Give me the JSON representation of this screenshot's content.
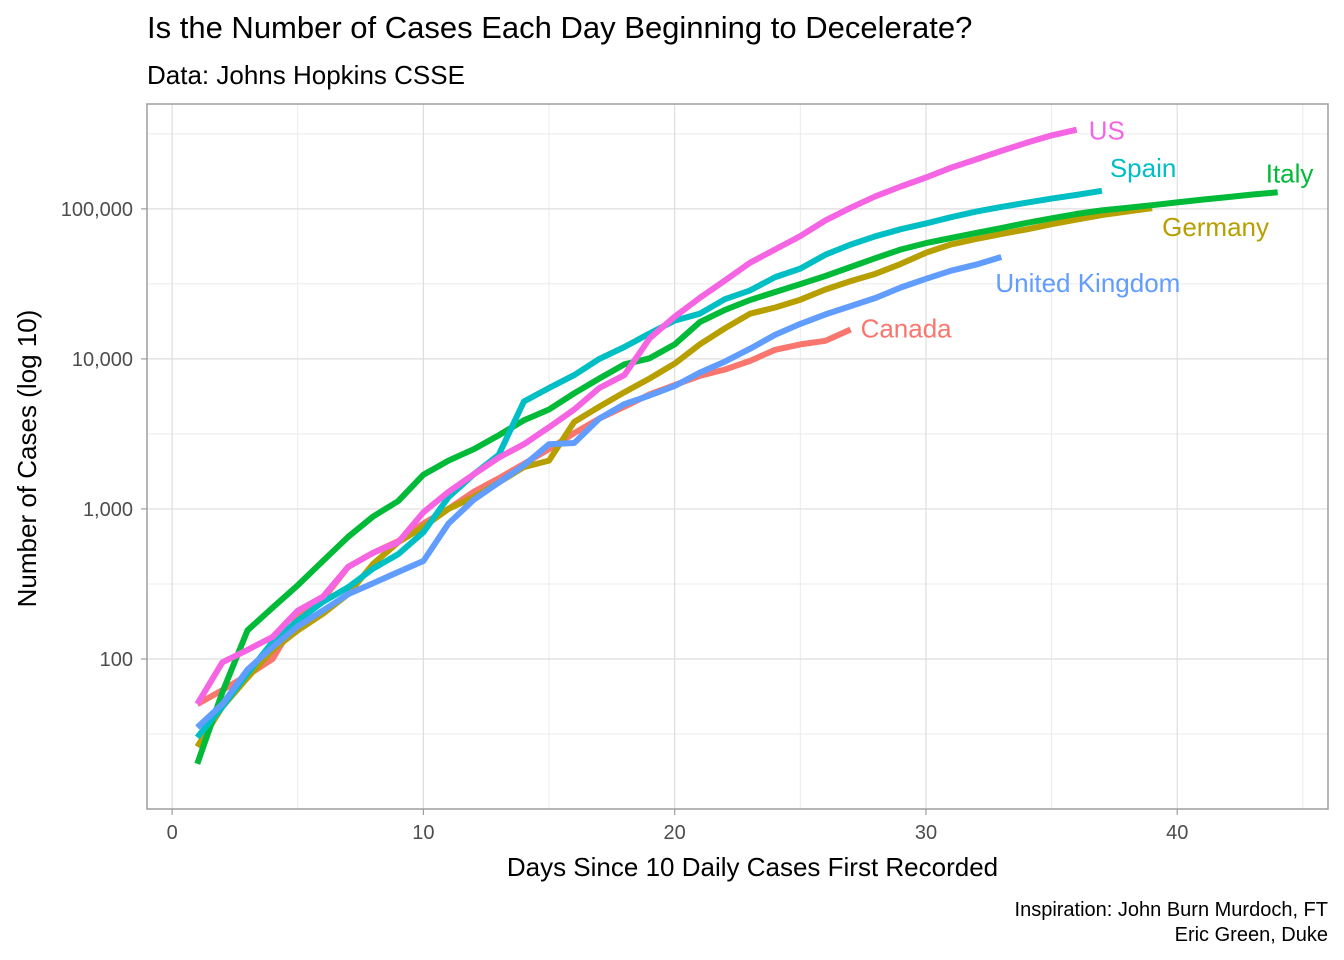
{
  "title": "Is the Number of Cases Each Day Beginning to Decelerate?",
  "subtitle": "Data: Johns Hopkins CSSE",
  "caption": [
    "Inspiration: John Burn Murdoch, FT",
    "Eric Green, Duke"
  ],
  "chart_data": {
    "type": "line",
    "xlabel": "Days Since 10 Daily Cases First Recorded",
    "ylabel": "Number of Cases (log 10)",
    "xlim": [
      -1,
      46
    ],
    "ylim": [
      10,
      500000
    ],
    "y_scale": "log10",
    "x_ticks": [
      0,
      10,
      20,
      30,
      40
    ],
    "x_tick_labels": [
      "0",
      "10",
      "20",
      "30",
      "40"
    ],
    "y_ticks": [
      100,
      1000,
      10000,
      100000
    ],
    "y_tick_labels": [
      "100",
      "1,000",
      "10,000",
      "100,000"
    ],
    "grid": true,
    "legend": "none (direct labels at line ends)",
    "series": [
      {
        "name": "Canada",
        "color": "#F8766D",
        "x": [
          1,
          2,
          3,
          4,
          5,
          6,
          7,
          8,
          9,
          10,
          11,
          12,
          13,
          14,
          15,
          16,
          17,
          18,
          19,
          20,
          21,
          22,
          23,
          24,
          25,
          26,
          27
        ],
        "y": [
          50,
          62,
          78,
          100,
          190,
          250,
          410,
          510,
          610,
          800,
          1000,
          1300,
          1600,
          2000,
          2500,
          3200,
          4000,
          4800,
          5800,
          6700,
          7700,
          8500,
          9700,
          11500,
          12500,
          13200,
          15700
        ]
      },
      {
        "name": "Germany",
        "color": "#B79F00",
        "x": [
          1,
          2,
          3,
          4,
          5,
          6,
          7,
          8,
          9,
          10,
          11,
          12,
          13,
          14,
          15,
          16,
          17,
          18,
          19,
          20,
          21,
          22,
          23,
          24,
          25,
          26,
          27,
          28,
          29,
          30,
          31,
          32,
          33,
          34,
          35,
          36,
          37,
          38,
          39
        ],
        "y": [
          26,
          48,
          75,
          115,
          155,
          200,
          270,
          430,
          600,
          760,
          1000,
          1200,
          1500,
          1900,
          2100,
          3800,
          4800,
          6000,
          7400,
          9300,
          12500,
          16000,
          20000,
          22000,
          24800,
          29000,
          33000,
          37000,
          43000,
          51000,
          58000,
          63000,
          68000,
          73000,
          79000,
          85000,
          91000,
          96000,
          101000
        ]
      },
      {
        "name": "Italy",
        "color": "#00BA38",
        "x": [
          1,
          2,
          3,
          4,
          5,
          6,
          7,
          8,
          9,
          10,
          11,
          12,
          13,
          14,
          15,
          16,
          17,
          18,
          19,
          20,
          21,
          22,
          23,
          24,
          25,
          26,
          27,
          28,
          29,
          30,
          31,
          32,
          33,
          34,
          35,
          36,
          37,
          38,
          39,
          40,
          41,
          42,
          43,
          44
        ],
        "y": [
          20,
          60,
          155,
          220,
          310,
          450,
          650,
          890,
          1130,
          1690,
          2100,
          2500,
          3100,
          3900,
          4600,
          5900,
          7400,
          9200,
          10100,
          12500,
          17600,
          21200,
          24700,
          27900,
          31500,
          35700,
          41000,
          47000,
          53600,
          59100,
          63900,
          69200,
          74400,
          80600,
          86500,
          92500,
          97700,
          101700,
          105800,
          110500,
          115200,
          119800,
          124600,
          128900
        ]
      },
      {
        "name": "Spain",
        "color": "#00BFC4",
        "x": [
          1,
          2,
          3,
          4,
          5,
          6,
          7,
          8,
          9,
          10,
          11,
          12,
          13,
          14,
          15,
          16,
          17,
          18,
          19,
          20,
          21,
          22,
          23,
          24,
          25,
          26,
          27,
          28,
          29,
          30,
          31,
          32,
          33,
          34,
          35,
          36,
          37
        ],
        "y": [
          30,
          48,
          80,
          130,
          180,
          240,
          300,
          400,
          500,
          700,
          1200,
          1700,
          2300,
          5200,
          6400,
          7800,
          10000,
          12000,
          14800,
          18000,
          20000,
          25000,
          28600,
          35100,
          40000,
          49500,
          57800,
          65700,
          73200,
          80000,
          88000,
          95900,
          103000,
          110000,
          117000,
          124000,
          132000
        ]
      },
      {
        "name": "United Kingdom",
        "color": "#619CFF",
        "x": [
          1,
          2,
          3,
          4,
          5,
          6,
          7,
          8,
          9,
          10,
          11,
          12,
          13,
          14,
          15,
          16,
          17,
          18,
          19,
          20,
          21,
          22,
          23,
          24,
          25,
          26,
          27,
          28,
          29,
          30,
          31,
          32,
          33
        ],
        "y": [
          35,
          50,
          85,
          120,
          165,
          210,
          270,
          320,
          380,
          450,
          800,
          1150,
          1500,
          1950,
          2700,
          2750,
          4000,
          5000,
          5700,
          6600,
          8100,
          9600,
          11700,
          14500,
          17100,
          19800,
          22500,
          25500,
          29900,
          34200,
          38700,
          42500,
          47800
        ]
      },
      {
        "name": "US",
        "color": "#F564E3",
        "x": [
          1,
          2,
          3,
          4,
          5,
          6,
          7,
          8,
          9,
          10,
          11,
          12,
          13,
          14,
          15,
          16,
          17,
          18,
          19,
          20,
          21,
          22,
          23,
          24,
          25,
          26,
          27,
          28,
          29,
          30,
          31,
          32,
          33,
          34,
          35,
          36
        ],
        "y": [
          50,
          95,
          115,
          140,
          210,
          260,
          410,
          510,
          600,
          950,
          1300,
          1700,
          2200,
          2700,
          3500,
          4600,
          6400,
          7800,
          13700,
          19100,
          25500,
          33300,
          43800,
          53700,
          65800,
          83800,
          101700,
          121500,
          140900,
          161800,
          188200,
          213600,
          243600,
          275600,
          308900,
          336800
        ]
      }
    ]
  }
}
